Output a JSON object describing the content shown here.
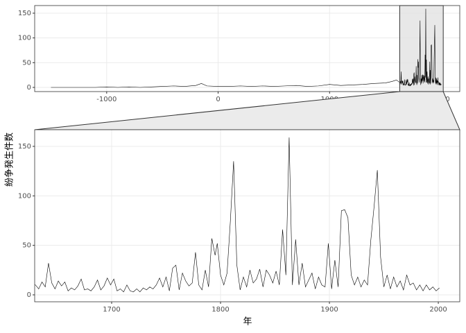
{
  "chart_data": [
    {
      "type": "line",
      "x": [
        -1500,
        -1400,
        -1300,
        -1200,
        -1100,
        -1000,
        -900,
        -800,
        -700,
        -600,
        -500,
        -400,
        -300,
        -200,
        -150,
        -100,
        0,
        100,
        200,
        300,
        400,
        500,
        600,
        700,
        800,
        900,
        1000,
        1100,
        1200,
        1300,
        1400,
        1500,
        1560,
        1600,
        1630,
        1633,
        1636,
        1639,
        1642,
        1645,
        1648,
        1651,
        1654,
        1657,
        1660,
        1663,
        1666,
        1669,
        1672,
        1675,
        1678,
        1681,
        1684,
        1687,
        1690,
        1693,
        1696,
        1699,
        1702,
        1705,
        1708,
        1711,
        1714,
        1717,
        1720,
        1723,
        1726,
        1729,
        1732,
        1735,
        1738,
        1741,
        1744,
        1747,
        1750,
        1753,
        1756,
        1759,
        1762,
        1765,
        1768,
        1771,
        1774,
        1777,
        1780,
        1783,
        1786,
        1789,
        1792,
        1795,
        1797,
        1800,
        1803,
        1806,
        1809,
        1812,
        1815,
        1818,
        1821,
        1824,
        1827,
        1830,
        1833,
        1836,
        1839,
        1842,
        1845,
        1848,
        1851,
        1854,
        1857,
        1860,
        1863,
        1866,
        1869,
        1872,
        1875,
        1878,
        1881,
        1884,
        1887,
        1890,
        1893,
        1896,
        1899,
        1902,
        1905,
        1908,
        1911,
        1914,
        1917,
        1920,
        1923,
        1926,
        1929,
        1932,
        1935,
        1938,
        1941,
        1944,
        1947,
        1950,
        1953,
        1956,
        1959,
        1962,
        1965,
        1968,
        1971,
        1974,
        1977,
        1980,
        1983,
        1986,
        1989,
        1992,
        1995,
        1998,
        2001
      ],
      "values": [
        0,
        0,
        0,
        0,
        0,
        1,
        0,
        1,
        0,
        1,
        2,
        3,
        2,
        4,
        8,
        3,
        2,
        2,
        3,
        2,
        3,
        2,
        3,
        4,
        2,
        3,
        6,
        4,
        5,
        6,
        8,
        9,
        12,
        15,
        10,
        6,
        13,
        8,
        32,
        12,
        6,
        14,
        9,
        13,
        4,
        7,
        5,
        9,
        16,
        5,
        6,
        4,
        8,
        15,
        5,
        9,
        17,
        10,
        16,
        4,
        6,
        3,
        10,
        4,
        3,
        6,
        3,
        7,
        5,
        8,
        6,
        10,
        17,
        8,
        18,
        4,
        27,
        30,
        5,
        22,
        14,
        9,
        12,
        43,
        10,
        5,
        25,
        8,
        57,
        40,
        52,
        20,
        10,
        22,
        74,
        135,
        30,
        5,
        18,
        8,
        25,
        12,
        16,
        26,
        8,
        25,
        20,
        12,
        24,
        10,
        66,
        20,
        159,
        10,
        56,
        10,
        32,
        8,
        15,
        22,
        6,
        18,
        10,
        8,
        52,
        6,
        35,
        8,
        85,
        86,
        78,
        20,
        10,
        18,
        8,
        15,
        10,
        55,
        89,
        126,
        38,
        8,
        20,
        6,
        18,
        8,
        14,
        5,
        20,
        10,
        12,
        5,
        10,
        4,
        10,
        5,
        8,
        4,
        7
      ],
      "color": "#000000",
      "xlim": [
        -1646,
        2168
      ],
      "ylim": [
        -8.4,
        165.4
      ],
      "xticks": [
        -1000,
        0,
        1000,
        2000
      ],
      "yticks": [
        0,
        50,
        100,
        150
      ],
      "grid": true
    },
    {
      "type": "zoom",
      "x_label": "年",
      "y_label": "紛争発生件数",
      "xlim": [
        1629.3,
        2019.7
      ],
      "ylim": [
        -7,
        166.8
      ],
      "xticks": [
        1700,
        1800,
        1900,
        2000
      ],
      "yticks": [
        0,
        50,
        100,
        150
      ],
      "grid": true
    }
  ]
}
